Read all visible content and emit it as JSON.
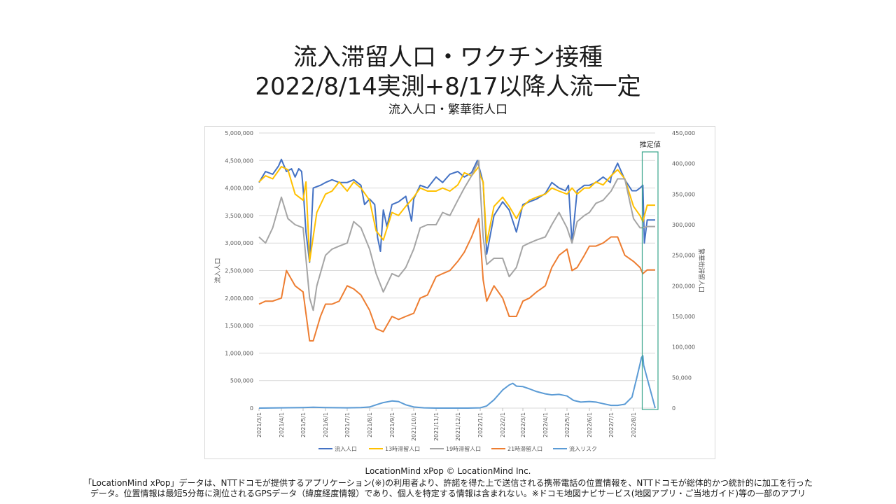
{
  "title_line1": "流入滞留人口・ワクチン接種",
  "title_line2": "2022/8/14実測+8/17以降人流一定",
  "subtitle": "流入人口・繁華街人口",
  "credit": "LocationMind xPop © LocationMind Inc.",
  "footnote_line1": "「LocationMind xPop」データは、NTTドコモが提供するアプリケーション(※)の利用者より、許諾を得た上で送信される携帯電話の位置情報を、NTTドコモが総体的かつ統計的に加工を行った",
  "footnote_line2": "データ。位置情報は最短5分毎に測位されるGPSデータ（緯度経度情報）であり、個人を特定する情報は含まれない。※ドコモ地図ナビサービス(地図アプリ・ご当地ガイド)等の一部のアプリ",
  "chart_data": {
    "type": "line",
    "ylabel": "流入人口",
    "y2label": "繁華街滞留人口",
    "ylim": [
      0,
      5000000
    ],
    "y2lim": [
      0,
      450000
    ],
    "yticks": [
      "0",
      "500,000",
      "1,000,000",
      "1,500,000",
      "2,000,000",
      "2,500,000",
      "3,000,000",
      "3,500,000",
      "4,000,000",
      "4,500,000",
      "5,000,000"
    ],
    "y2ticks": [
      "0",
      "50,000",
      "100,000",
      "150,000",
      "200,000",
      "250,000",
      "300,000",
      "350,000",
      "400,000",
      "450,000"
    ],
    "x_start": "2021/3/1",
    "x_end": "2022/8/31",
    "xticks": [
      "2021/3/1",
      "2021/4/1",
      "2021/5/1",
      "2021/6/1",
      "2021/7/1",
      "2021/8/1",
      "2021/9/1",
      "2021/10/1",
      "2021/11/1",
      "2021/12/1",
      "2022/1/1",
      "2022/2/1",
      "2022/3/1",
      "2022/4/1",
      "2022/5/1",
      "2022/6/1",
      "2022/7/1",
      "2022/8/1"
    ],
    "annotation": "推定値",
    "annotation_range": [
      "2022/8/15",
      "2022/8/31"
    ],
    "grid": true,
    "legend": "bottom",
    "series": [
      {
        "name": "流入人口",
        "axis": "left",
        "color": "#4472c4",
        "x": [
          "2021/3/1",
          "2021/3/10",
          "2021/3/20",
          "2021/3/28",
          "2021/4/1",
          "2021/4/8",
          "2021/4/15",
          "2021/4/20",
          "2021/4/25",
          "2021/4/29",
          "2021/5/1",
          "2021/5/5",
          "2021/5/10",
          "2021/5/15",
          "2021/5/25",
          "2021/6/1",
          "2021/6/10",
          "2021/6/20",
          "2021/7/1",
          "2021/7/10",
          "2021/7/20",
          "2021/7/25",
          "2021/8/1",
          "2021/8/8",
          "2021/8/12",
          "2021/8/16",
          "2021/8/20",
          "2021/8/25",
          "2021/9/1",
          "2021/9/10",
          "2021/9/20",
          "2021/9/28",
          "2021/10/1",
          "2021/10/10",
          "2021/10/20",
          "2021/11/1",
          "2021/11/10",
          "2021/11/20",
          "2021/12/1",
          "2021/12/10",
          "2021/12/20",
          "2021/12/28",
          "2022/1/1",
          "2022/1/5",
          "2022/1/10",
          "2022/1/20",
          "2022/2/1",
          "2022/2/10",
          "2022/2/20",
          "2022/3/1",
          "2022/3/10",
          "2022/3/20",
          "2022/4/1",
          "2022/4/10",
          "2022/4/20",
          "2022/4/29",
          "2022/5/3",
          "2022/5/8",
          "2022/5/15",
          "2022/5/25",
          "2022/6/1",
          "2022/6/10",
          "2022/6/20",
          "2022/6/30",
          "2022/7/1",
          "2022/7/10",
          "2022/7/20",
          "2022/7/30",
          "2022/8/5",
          "2022/8/10",
          "2022/8/14",
          "2022/8/16",
          "2022/8/20",
          "2022/8/31"
        ],
        "values": [
          4100000,
          4300000,
          4250000,
          4400000,
          4520000,
          4300000,
          4350000,
          4200000,
          4350000,
          4300000,
          4000000,
          3200000,
          2650000,
          4000000,
          4050000,
          4100000,
          4150000,
          4100000,
          4100000,
          4150000,
          4050000,
          3700000,
          3800000,
          3700000,
          3100000,
          2850000,
          3600000,
          3300000,
          3700000,
          3750000,
          3850000,
          3400000,
          3800000,
          4050000,
          4000000,
          4200000,
          4100000,
          4250000,
          4300000,
          4200000,
          4280000,
          4500000,
          4300000,
          4100000,
          2800000,
          3500000,
          3750000,
          3600000,
          3200000,
          3700000,
          3750000,
          3800000,
          3900000,
          4100000,
          4000000,
          3950000,
          4050000,
          3000000,
          3950000,
          4050000,
          4050000,
          4100000,
          4200000,
          4100000,
          4200000,
          4450000,
          4150000,
          3950000,
          3950000,
          4000000,
          4050000,
          3000000,
          3420000,
          3420000
        ]
      },
      {
        "name": "13時滞留人口",
        "axis": "right",
        "color": "#ffc000",
        "x": [
          "2021/3/1",
          "2021/3/10",
          "2021/3/20",
          "2021/4/1",
          "2021/4/10",
          "2021/4/20",
          "2021/5/1",
          "2021/5/5",
          "2021/5/10",
          "2021/5/20",
          "2021/6/1",
          "2021/6/10",
          "2021/6/20",
          "2021/7/1",
          "2021/7/10",
          "2021/7/20",
          "2021/8/1",
          "2021/8/10",
          "2021/8/20",
          "2021/9/1",
          "2021/9/10",
          "2021/9/20",
          "2021/10/1",
          "2021/10/10",
          "2021/10/20",
          "2021/11/1",
          "2021/11/10",
          "2021/11/20",
          "2021/12/1",
          "2021/12/10",
          "2021/12/20",
          "2021/12/30",
          "2022/1/1",
          "2022/1/5",
          "2022/1/10",
          "2022/1/20",
          "2022/2/1",
          "2022/2/10",
          "2022/2/20",
          "2022/3/1",
          "2022/3/10",
          "2022/3/20",
          "2022/4/1",
          "2022/4/10",
          "2022/4/20",
          "2022/5/1",
          "2022/5/8",
          "2022/5/15",
          "2022/5/25",
          "2022/6/1",
          "2022/6/10",
          "2022/6/20",
          "2022/7/1",
          "2022/7/10",
          "2022/7/20",
          "2022/8/1",
          "2022/8/10",
          "2022/8/14",
          "2022/8/20",
          "2022/8/31"
        ],
        "values": [
          370000,
          380000,
          375000,
          395000,
          390000,
          350000,
          340000,
          370000,
          240000,
          320000,
          350000,
          355000,
          370000,
          355000,
          370000,
          360000,
          340000,
          290000,
          275000,
          320000,
          315000,
          330000,
          345000,
          360000,
          355000,
          355000,
          360000,
          355000,
          365000,
          385000,
          380000,
          395000,
          380000,
          370000,
          270000,
          330000,
          345000,
          330000,
          310000,
          330000,
          340000,
          345000,
          350000,
          360000,
          355000,
          350000,
          360000,
          350000,
          360000,
          360000,
          370000,
          365000,
          380000,
          390000,
          375000,
          330000,
          315000,
          305000,
          332000,
          332000
        ]
      },
      {
        "name": "19時滞留人口",
        "axis": "right",
        "color": "#a5a5a5",
        "x": [
          "2021/3/1",
          "2021/3/10",
          "2021/3/20",
          "2021/4/1",
          "2021/4/10",
          "2021/4/20",
          "2021/5/1",
          "2021/5/10",
          "2021/5/15",
          "2021/5/20",
          "2021/6/1",
          "2021/6/10",
          "2021/6/20",
          "2021/7/1",
          "2021/7/10",
          "2021/7/20",
          "2021/8/1",
          "2021/8/10",
          "2021/8/20",
          "2021/9/1",
          "2021/9/10",
          "2021/9/20",
          "2021/10/1",
          "2021/10/10",
          "2021/10/20",
          "2021/11/1",
          "2021/11/10",
          "2021/11/20",
          "2021/12/1",
          "2021/12/10",
          "2021/12/20",
          "2021/12/30",
          "2022/1/1",
          "2022/1/5",
          "2022/1/10",
          "2022/1/20",
          "2022/2/1",
          "2022/2/10",
          "2022/2/20",
          "2022/3/1",
          "2022/3/10",
          "2022/3/20",
          "2022/4/1",
          "2022/4/10",
          "2022/4/20",
          "2022/5/1",
          "2022/5/8",
          "2022/5/15",
          "2022/5/25",
          "2022/6/1",
          "2022/6/10",
          "2022/6/20",
          "2022/7/1",
          "2022/7/10",
          "2022/7/20",
          "2022/8/1",
          "2022/8/10",
          "2022/8/14",
          "2022/8/20",
          "2022/8/31"
        ],
        "values": [
          280000,
          270000,
          295000,
          345000,
          310000,
          300000,
          295000,
          180000,
          160000,
          200000,
          250000,
          260000,
          265000,
          270000,
          305000,
          295000,
          260000,
          220000,
          190000,
          220000,
          215000,
          230000,
          260000,
          295000,
          300000,
          300000,
          320000,
          315000,
          340000,
          360000,
          380000,
          405000,
          360000,
          280000,
          235000,
          245000,
          245000,
          215000,
          230000,
          265000,
          270000,
          275000,
          280000,
          300000,
          320000,
          295000,
          270000,
          305000,
          315000,
          320000,
          335000,
          340000,
          355000,
          375000,
          375000,
          310000,
          295000,
          295000,
          297000,
          297000
        ]
      },
      {
        "name": "21時滞留人口",
        "axis": "right",
        "color": "#ed7d31",
        "x": [
          "2021/3/1",
          "2021/3/10",
          "2021/3/20",
          "2021/4/1",
          "2021/4/8",
          "2021/4/20",
          "2021/5/1",
          "2021/5/10",
          "2021/5/15",
          "2021/5/25",
          "2021/6/1",
          "2021/6/10",
          "2021/6/20",
          "2021/7/1",
          "2021/7/10",
          "2021/7/20",
          "2021/8/1",
          "2021/8/10",
          "2021/8/20",
          "2021/9/1",
          "2021/9/10",
          "2021/9/20",
          "2021/10/1",
          "2021/10/10",
          "2021/10/20",
          "2021/11/1",
          "2021/11/10",
          "2021/11/20",
          "2021/12/1",
          "2021/12/10",
          "2021/12/20",
          "2021/12/30",
          "2022/1/1",
          "2022/1/5",
          "2022/1/10",
          "2022/1/20",
          "2022/2/1",
          "2022/2/10",
          "2022/2/20",
          "2022/3/1",
          "2022/3/10",
          "2022/3/20",
          "2022/4/1",
          "2022/4/10",
          "2022/4/20",
          "2022/5/1",
          "2022/5/8",
          "2022/5/15",
          "2022/5/25",
          "2022/6/1",
          "2022/6/10",
          "2022/6/20",
          "2022/7/1",
          "2022/7/10",
          "2022/7/20",
          "2022/8/1",
          "2022/8/10",
          "2022/8/14",
          "2022/8/20",
          "2022/8/31"
        ],
        "values": [
          170000,
          175000,
          175000,
          180000,
          225000,
          200000,
          190000,
          110000,
          110000,
          150000,
          170000,
          170000,
          175000,
          200000,
          195000,
          185000,
          160000,
          130000,
          125000,
          150000,
          145000,
          150000,
          155000,
          180000,
          185000,
          215000,
          220000,
          225000,
          240000,
          255000,
          280000,
          310000,
          280000,
          210000,
          175000,
          200000,
          180000,
          150000,
          150000,
          175000,
          180000,
          190000,
          200000,
          230000,
          250000,
          260000,
          225000,
          230000,
          250000,
          265000,
          265000,
          270000,
          280000,
          280000,
          250000,
          240000,
          230000,
          220000,
          226000,
          226000
        ]
      },
      {
        "name": "流入リスク",
        "axis": "left",
        "color": "#5b9bd5",
        "x": [
          "2021/3/1",
          "2021/4/1",
          "2021/5/1",
          "2021/5/15",
          "2021/6/1",
          "2021/7/1",
          "2021/7/20",
          "2021/8/1",
          "2021/8/10",
          "2021/8/20",
          "2021/9/1",
          "2021/9/10",
          "2021/9/20",
          "2021/10/1",
          "2021/10/15",
          "2021/11/1",
          "2021/12/1",
          "2021/12/15",
          "2022/1/1",
          "2022/1/10",
          "2022/1/20",
          "2022/2/1",
          "2022/2/10",
          "2022/2/15",
          "2022/2/20",
          "2022/3/1",
          "2022/3/10",
          "2022/3/20",
          "2022/4/1",
          "2022/4/10",
          "2022/4/20",
          "2022/5/1",
          "2022/5/10",
          "2022/5/20",
          "2022/6/1",
          "2022/6/10",
          "2022/6/20",
          "2022/7/1",
          "2022/7/10",
          "2022/7/20",
          "2022/7/30",
          "2022/8/5",
          "2022/8/10",
          "2022/8/12",
          "2022/8/14",
          "2022/8/15",
          "2022/8/31"
        ],
        "values": [
          0,
          5000,
          10000,
          15000,
          10000,
          5000,
          10000,
          20000,
          60000,
          100000,
          130000,
          120000,
          60000,
          20000,
          5000,
          0,
          0,
          0,
          5000,
          40000,
          150000,
          330000,
          420000,
          450000,
          400000,
          390000,
          350000,
          300000,
          260000,
          240000,
          250000,
          220000,
          140000,
          110000,
          120000,
          110000,
          80000,
          50000,
          50000,
          70000,
          200000,
          520000,
          800000,
          920000,
          950000,
          780000,
          0
        ]
      }
    ]
  }
}
